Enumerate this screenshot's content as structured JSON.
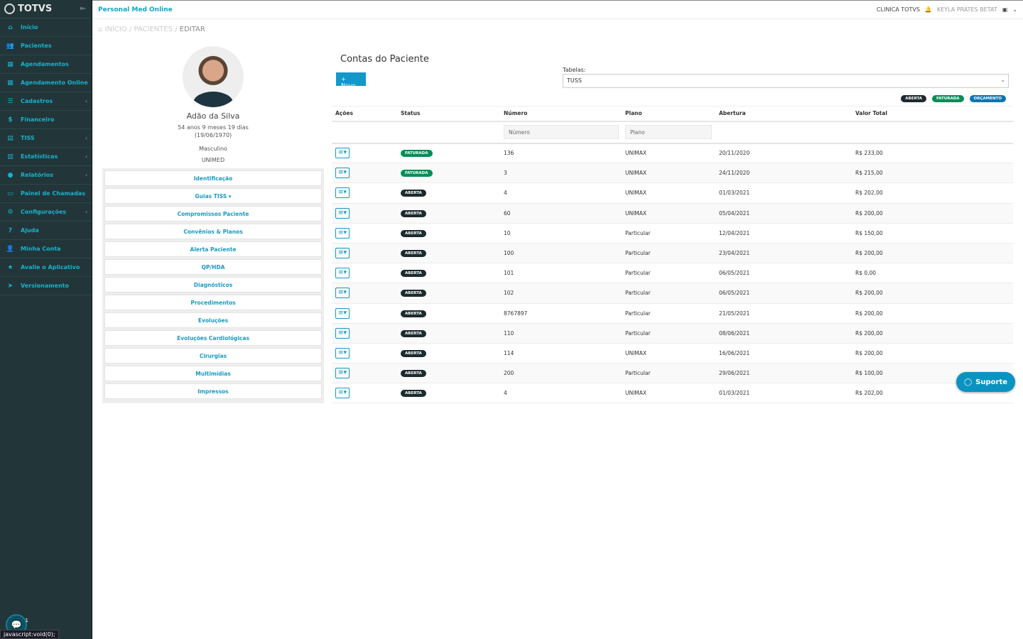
{
  "app": {
    "logo": "TOTVS",
    "brand": "Personal Med Online",
    "clinic": "CLINICA TOTVS",
    "user": "KEYLA PRATES BETAT"
  },
  "sidebar": {
    "items": [
      {
        "label": "Início",
        "icon": "⌂",
        "chev": false
      },
      {
        "label": "Pacientes",
        "icon": "👥",
        "chev": false
      },
      {
        "label": "Agendamentos",
        "icon": "▦",
        "chev": false
      },
      {
        "label": "Agendamento Online",
        "icon": "▦",
        "chev": false
      },
      {
        "label": "Cadastros",
        "icon": "☰",
        "chev": true
      },
      {
        "label": "Financeiro",
        "icon": "$",
        "chev": false
      },
      {
        "label": "TISS",
        "icon": "▤",
        "chev": true
      },
      {
        "label": "Estatísticas",
        "icon": "▥",
        "chev": true
      },
      {
        "label": "Relatórios",
        "icon": "●",
        "chev": true
      },
      {
        "label": "Painel de Chamadas",
        "icon": "▭",
        "chev": false
      },
      {
        "label": "Configurações",
        "icon": "⚙",
        "chev": true
      },
      {
        "label": "Ajuda",
        "icon": "?",
        "chev": false
      },
      {
        "label": "Minha Conta",
        "icon": "👤",
        "chev": false
      },
      {
        "label": "Avalie o Aplicativo",
        "icon": "★",
        "chev": false
      },
      {
        "label": "Versionamento",
        "icon": "➤",
        "chev": false
      }
    ]
  },
  "chat": {
    "badge": "1"
  },
  "status_bar": "javascript:void(0);",
  "breadcrumb": {
    "home": "INÍCIO",
    "sep1": " / ",
    "pacientes": "PACIENTES",
    "sep2": " / ",
    "current": "EDITAR"
  },
  "patient": {
    "name": "Adão da Silva",
    "age": "54 anos 9 meses 19 dias",
    "birth": "(19/06/1970)",
    "sex": "Masculino",
    "plan": "UNIMED"
  },
  "patient_menu": [
    "Identificação",
    "Guias TISS ▾",
    "Compromissos Paciente",
    "Convênios & Planos",
    "Alerta Paciente",
    "QP/HDA",
    "Diagnósticos",
    "Procedimentos",
    "Evoluções",
    "Evoluções Cardiológicas",
    "Cirurgias",
    "Multimídias",
    "Impressos"
  ],
  "main": {
    "title": "Contas do Paciente",
    "new_button": "+ Novo",
    "tables_label": "Tabelas:",
    "tables_value": "TUSS",
    "legend": [
      "ABERTA",
      "FATURADA",
      "ORÇAMENTO"
    ],
    "columns": [
      "Ações",
      "Status",
      "Número",
      "Plano",
      "Abertura",
      "Valor Total"
    ],
    "filters": {
      "numero": "Número",
      "plano": "Plano"
    },
    "rows": [
      {
        "status": "FATURADA",
        "numero": "136",
        "plano": "UNIMAX",
        "abertura": "20/11/2020",
        "valor": "R$ 233,00"
      },
      {
        "status": "FATURADA",
        "numero": "3",
        "plano": "UNIMAX",
        "abertura": "24/11/2020",
        "valor": "R$ 215,00"
      },
      {
        "status": "ABERTA",
        "numero": "4",
        "plano": "UNIMAX",
        "abertura": "01/03/2021",
        "valor": "R$ 202,00"
      },
      {
        "status": "ABERTA",
        "numero": "60",
        "plano": "UNIMAX",
        "abertura": "05/04/2021",
        "valor": "R$ 200,00"
      },
      {
        "status": "ABERTA",
        "numero": "10",
        "plano": "Particular",
        "abertura": "12/04/2021",
        "valor": "R$ 150,00"
      },
      {
        "status": "ABERTA",
        "numero": "100",
        "plano": "Particular",
        "abertura": "23/04/2021",
        "valor": "R$ 200,00"
      },
      {
        "status": "ABERTA",
        "numero": "101",
        "plano": "Particular",
        "abertura": "06/05/2021",
        "valor": "R$ 0,00"
      },
      {
        "status": "ABERTA",
        "numero": "102",
        "plano": "Particular",
        "abertura": "06/05/2021",
        "valor": "R$ 200,00"
      },
      {
        "status": "ABERTA",
        "numero": "8767897",
        "plano": "Particular",
        "abertura": "21/05/2021",
        "valor": "R$ 200,00"
      },
      {
        "status": "ABERTA",
        "numero": "110",
        "plano": "Particular",
        "abertura": "08/06/2021",
        "valor": "R$ 200,00"
      },
      {
        "status": "ABERTA",
        "numero": "114",
        "plano": "UNIMAX",
        "abertura": "16/06/2021",
        "valor": "R$ 200,00"
      },
      {
        "status": "ABERTA",
        "numero": "200",
        "plano": "Particular",
        "abertura": "29/06/2021",
        "valor": "R$ 100,00"
      },
      {
        "status": "ABERTA",
        "numero": "4",
        "plano": "UNIMAX",
        "abertura": "01/03/2021",
        "valor": "R$ 202,00"
      }
    ]
  },
  "support": {
    "label": "Suporte"
  },
  "colors": {
    "sidebar": "#223639",
    "accent": "#18b2cc",
    "aberta": "#1b2a2e",
    "faturada": "#0c8b58",
    "orcamento": "#0d74ae"
  }
}
